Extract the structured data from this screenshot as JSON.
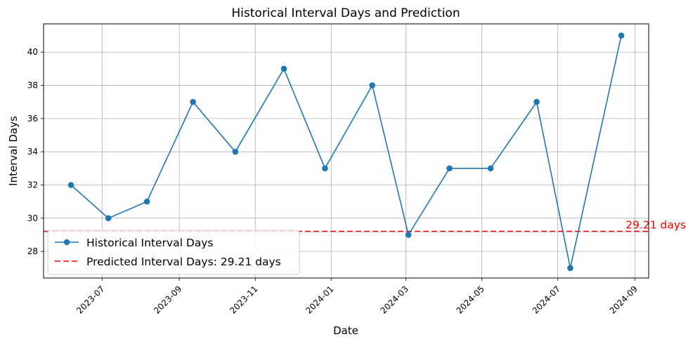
{
  "chart_data": {
    "type": "line",
    "title": "Historical Interval Days and Prediction",
    "xlabel": "Date",
    "ylabel": "Interval Days",
    "x_type": "date",
    "xlim": [
      "2023-05-15",
      "2024-09-12"
    ],
    "ylim": [
      26.4,
      41.7
    ],
    "x_ticks": [
      "2023-07-01",
      "2023-09-01",
      "2023-11-01",
      "2024-01-01",
      "2024-03-01",
      "2024-05-01",
      "2024-07-01",
      "2024-09-01"
    ],
    "x_tick_labels": [
      "2023-07",
      "2023-09",
      "2023-11",
      "2024-01",
      "2024-03",
      "2024-05",
      "2024-07",
      "2024-09"
    ],
    "y_ticks": [
      28,
      30,
      32,
      34,
      36,
      38,
      40
    ],
    "y_tick_labels": [
      "28",
      "30",
      "32",
      "34",
      "36",
      "38",
      "40"
    ],
    "grid": true,
    "series": [
      {
        "name": "Historical Interval Days",
        "color": "#1f77b4",
        "marker": "circle",
        "x": [
          "2023-06-06",
          "2023-07-06",
          "2023-08-06",
          "2023-09-12",
          "2023-10-16",
          "2023-11-24",
          "2023-12-27",
          "2024-02-03",
          "2024-03-03",
          "2024-04-05",
          "2024-05-08",
          "2024-06-14",
          "2024-07-11",
          "2024-08-21"
        ],
        "values": [
          32,
          30,
          31,
          37,
          34,
          39,
          33,
          38,
          29,
          33,
          33,
          37,
          27,
          41
        ]
      }
    ],
    "reference_lines": [
      {
        "name": "Predicted Interval Days: 29.21 days",
        "y": 29.21,
        "color": "#ff0000",
        "style": "dashed",
        "annotation": "29.21 days"
      }
    ],
    "legend_position": "lower-left"
  }
}
